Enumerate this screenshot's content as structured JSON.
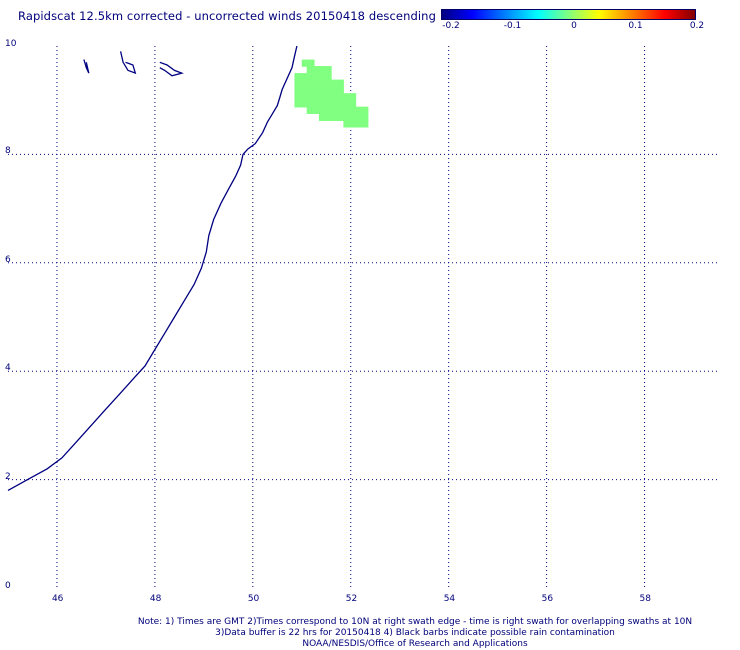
{
  "title": "Rapidscat 12.5km corrected - uncorrected winds 20150418 descending",
  "colorbar": {
    "min": -0.2,
    "max": 0.2,
    "tick_labels": [
      "-0.2",
      "-0.1",
      "0",
      "0.1",
      "0.2"
    ],
    "tick_values": [
      -0.2,
      -0.1,
      0,
      0.1,
      0.2
    ],
    "colors": [
      "#000080",
      "#0000ff",
      "#0080ff",
      "#00ffff",
      "#80ff80",
      "#ffff00",
      "#ff8000",
      "#ff0000",
      "#800000"
    ]
  },
  "map": {
    "lon_range": [
      45.0,
      59.5
    ],
    "lat_range": [
      0,
      10
    ],
    "x_ticks": [
      {
        "label": "46",
        "value": 46
      },
      {
        "label": "48",
        "value": 48
      },
      {
        "label": "50",
        "value": 50
      },
      {
        "label": "52",
        "value": 52
      },
      {
        "label": "54",
        "value": 54
      },
      {
        "label": "56",
        "value": 56
      },
      {
        "label": "58",
        "value": 58
      }
    ],
    "y_ticks": [
      {
        "label": "0",
        "value": 0
      },
      {
        "label": "2",
        "value": 2
      },
      {
        "label": "4",
        "value": 4
      },
      {
        "label": "6",
        "value": 6
      },
      {
        "label": "8",
        "value": 8
      },
      {
        "label": "10",
        "value": 10
      }
    ],
    "gridline_style": "dotted",
    "coastline_color": "#000080",
    "grid_color": "#000080",
    "coastline": [
      [
        45.0,
        1.8
      ],
      [
        45.4,
        2.0
      ],
      [
        45.8,
        2.2
      ],
      [
        46.1,
        2.4
      ],
      [
        46.4,
        2.7
      ],
      [
        46.7,
        3.0
      ],
      [
        47.0,
        3.3
      ],
      [
        47.3,
        3.6
      ],
      [
        47.6,
        3.9
      ],
      [
        47.8,
        4.1
      ],
      [
        48.0,
        4.4
      ],
      [
        48.2,
        4.7
      ],
      [
        48.4,
        5.0
      ],
      [
        48.6,
        5.3
      ],
      [
        48.8,
        5.6
      ],
      [
        48.95,
        5.9
      ],
      [
        49.05,
        6.2
      ],
      [
        49.1,
        6.5
      ],
      [
        49.2,
        6.8
      ],
      [
        49.35,
        7.1
      ],
      [
        49.5,
        7.35
      ],
      [
        49.65,
        7.6
      ],
      [
        49.75,
        7.8
      ],
      [
        49.8,
        8.0
      ],
      [
        49.9,
        8.1
      ],
      [
        50.05,
        8.2
      ],
      [
        50.2,
        8.4
      ],
      [
        50.3,
        8.6
      ],
      [
        50.4,
        8.75
      ],
      [
        50.5,
        8.9
      ],
      [
        50.55,
        9.05
      ],
      [
        50.6,
        9.2
      ],
      [
        50.7,
        9.4
      ],
      [
        50.8,
        9.6
      ],
      [
        50.85,
        9.8
      ],
      [
        50.9,
        10.0
      ]
    ],
    "islands": [
      [
        [
          46.55,
          9.75
        ],
        [
          46.6,
          9.6
        ],
        [
          46.65,
          9.5
        ],
        [
          46.6,
          9.7
        ]
      ],
      [
        [
          47.3,
          9.9
        ],
        [
          47.35,
          9.7
        ],
        [
          47.45,
          9.55
        ],
        [
          47.6,
          9.5
        ],
        [
          47.55,
          9.65
        ],
        [
          47.4,
          9.7
        ]
      ],
      [
        [
          48.1,
          9.7
        ],
        [
          48.25,
          9.65
        ],
        [
          48.4,
          9.55
        ],
        [
          48.55,
          9.5
        ],
        [
          48.35,
          9.45
        ],
        [
          48.2,
          9.55
        ],
        [
          48.1,
          9.6
        ]
      ]
    ],
    "diff_cells": {
      "value": 0.0,
      "color": "#80ff80",
      "cell_size_deg": [
        0.25,
        0.125
      ],
      "cells_lonlat": [
        [
          51.0,
          9.75
        ],
        [
          51.1,
          9.63
        ],
        [
          51.35,
          9.63
        ],
        [
          50.85,
          9.5
        ],
        [
          51.1,
          9.5
        ],
        [
          51.35,
          9.5
        ],
        [
          50.85,
          9.38
        ],
        [
          51.1,
          9.38
        ],
        [
          51.35,
          9.38
        ],
        [
          51.6,
          9.38
        ],
        [
          50.85,
          9.25
        ],
        [
          51.1,
          9.25
        ],
        [
          51.35,
          9.25
        ],
        [
          51.6,
          9.25
        ],
        [
          50.85,
          9.13
        ],
        [
          51.1,
          9.13
        ],
        [
          51.35,
          9.13
        ],
        [
          51.6,
          9.13
        ],
        [
          51.85,
          9.13
        ],
        [
          50.85,
          9.0
        ],
        [
          51.1,
          9.0
        ],
        [
          51.35,
          9.0
        ],
        [
          51.6,
          9.0
        ],
        [
          51.85,
          9.0
        ],
        [
          51.1,
          8.88
        ],
        [
          51.35,
          8.88
        ],
        [
          51.6,
          8.88
        ],
        [
          51.85,
          8.88
        ],
        [
          52.1,
          8.88
        ],
        [
          51.35,
          8.75
        ],
        [
          51.6,
          8.75
        ],
        [
          51.85,
          8.75
        ],
        [
          52.1,
          8.75
        ],
        [
          51.85,
          8.63
        ],
        [
          52.1,
          8.63
        ]
      ]
    }
  },
  "notes": {
    "line1": "Note: 1) Times are GMT 2)Times correspond to 10N at right swath edge - time is right swath for overlapping swaths at 10N",
    "line2": "3)Data buffer is 22 hrs for 20150418 4) Black barbs indicate possible rain contamination",
    "line3": "NOAA/NESDIS/Office of Research and Applications"
  }
}
